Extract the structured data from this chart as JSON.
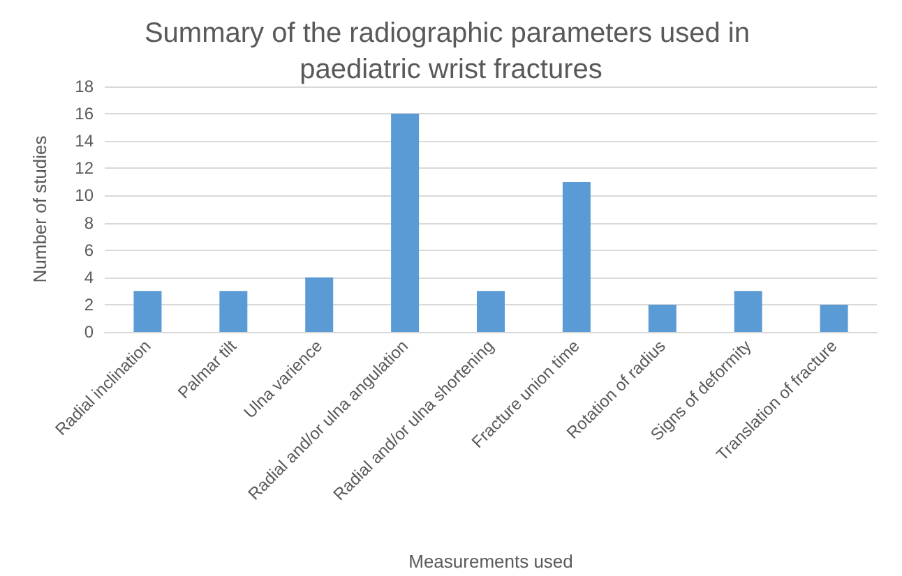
{
  "chart_data": {
    "type": "bar",
    "title": "Summary of the radiographic parameters used in paediatric wrist fractures",
    "xlabel": "Measurements used",
    "ylabel": "Number of studies",
    "categories": [
      "Radial inclination",
      "Palmar tilt",
      "Ulna varience",
      "Radial and/or ulna angulation",
      "Radial and/or ulna shortening",
      "Fracture union time",
      "Rotation of radius",
      "Signs of deformity",
      "Translation of fracture"
    ],
    "values": [
      3,
      3,
      4,
      16,
      3,
      11,
      2,
      3,
      2
    ],
    "color": "#5b9bd5",
    "ylim": [
      0,
      18
    ],
    "yticks": [
      0,
      2,
      4,
      6,
      8,
      10,
      12,
      14,
      16,
      18
    ],
    "grid": "y",
    "legend": false
  }
}
